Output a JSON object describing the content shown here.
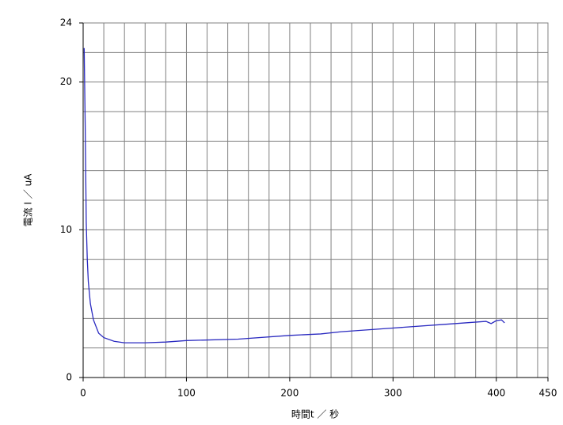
{
  "chart_data": {
    "type": "line",
    "xlabel": "時間t ／ 秒",
    "ylabel": "電流 I ／ uA",
    "x": [
      1,
      2,
      3,
      4,
      5,
      7,
      10,
      15,
      20,
      30,
      40,
      60,
      80,
      100,
      150,
      200,
      230,
      250,
      300,
      350,
      390,
      395,
      400,
      405,
      408
    ],
    "series": [
      {
        "color": "#2a2ac0",
        "values": [
          22.3,
          17,
          10.5,
          8,
          6.5,
          5,
          3.9,
          3,
          2.7,
          2.45,
          2.35,
          2.35,
          2.4,
          2.5,
          2.6,
          2.85,
          2.95,
          3.1,
          3.35,
          3.6,
          3.8,
          3.65,
          3.85,
          3.9,
          3.7
        ]
      }
    ],
    "xlim": [
      0,
      450
    ],
    "xticks": [
      0,
      100,
      200,
      300,
      400,
      450
    ],
    "ylim": [
      0,
      24
    ],
    "yticks": [
      0,
      10,
      20,
      24
    ],
    "xgrid": [
      20,
      40,
      60,
      80,
      100,
      120,
      140,
      160,
      180,
      200,
      220,
      240,
      260,
      280,
      300,
      320,
      340,
      360,
      380,
      400,
      420,
      440
    ],
    "ygrid": [
      2,
      4,
      6,
      8,
      10,
      12,
      14,
      16,
      18,
      20,
      22
    ],
    "grid": true
  }
}
